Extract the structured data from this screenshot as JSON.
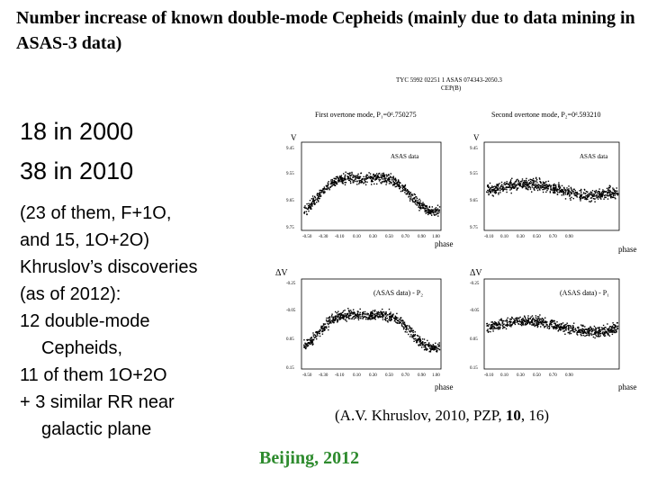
{
  "title": "Number increase of known double-mode Cepheids (mainly due to data mining in ASAS-3 data)",
  "lines": {
    "l1": "18 in 2000",
    "l2": "38 in 2010",
    "l3": "(23 of them, F+1O,",
    "l4": "and 15, 1O+2O)",
    "l5": "Khruslov’s discoveries",
    "l6": "(as of 2012):",
    "l7": "12 double-mode",
    "l8": "Cepheids,",
    "l9": "11 of them 1O+2O",
    "l10": "+ 3 similar RR near",
    "l11": "galactic plane"
  },
  "figure": {
    "header1": "TYC 5992 02251 1     ASAS 074343-2050.3",
    "header2": "CEP(B)",
    "panel_tl_title": "First overtone mode,  P₁=0ᵈ.750275",
    "panel_tr_title": "Second overtone mode,  P₂=0ᵈ.593210",
    "ylabel_top": "V",
    "ylabel_bottom": "ΔV",
    "asas_data": "ASAS data",
    "asas_minus_p2": "(ASAS data) - P₂",
    "asas_minus_p1": "(ASAS data) - P₁",
    "phase": "phase",
    "top_yticks": [
      "9.45",
      "9.55",
      "9.65",
      "9.75"
    ],
    "bottom_yticks": [
      "-0.25",
      "-0.05",
      "0.05",
      "0.15"
    ],
    "xticks": [
      "-0.50",
      "-0.30",
      "-0.10",
      "0.10",
      "0.30",
      "0.50",
      "0.70",
      "0.90",
      "1.00"
    ]
  },
  "citation": {
    "prefix": "(A.V. Khruslov, 2010, PZP, ",
    "volume": "10",
    "suffix": ", 16)"
  },
  "footer": "Beijing, 2012"
}
